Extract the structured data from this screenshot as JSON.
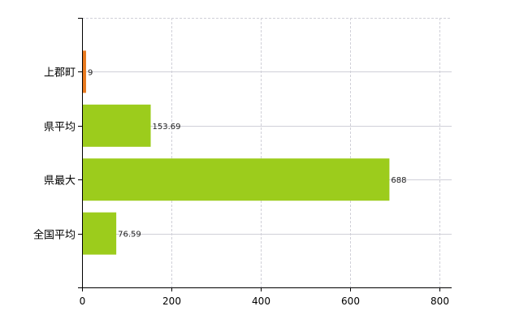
{
  "chart_data": {
    "type": "bar",
    "orientation": "horizontal",
    "categories": [
      "上郡町",
      "県平均",
      "県最大",
      "全国平均"
    ],
    "values": [
      9,
      153.69,
      688,
      76.59
    ],
    "value_labels": [
      "9",
      "153.69",
      "688",
      "76.59"
    ],
    "colors": [
      "#e8791e",
      "#9ccc1c",
      "#9ccc1c",
      "#9ccc1c"
    ],
    "xlim": [
      0,
      800
    ],
    "xticks": [
      "0",
      "200",
      "400",
      "600",
      "800"
    ],
    "xtick_values": [
      0,
      200,
      400,
      600,
      800
    ],
    "grid": true,
    "title": "",
    "xlabel": "",
    "ylabel": ""
  }
}
